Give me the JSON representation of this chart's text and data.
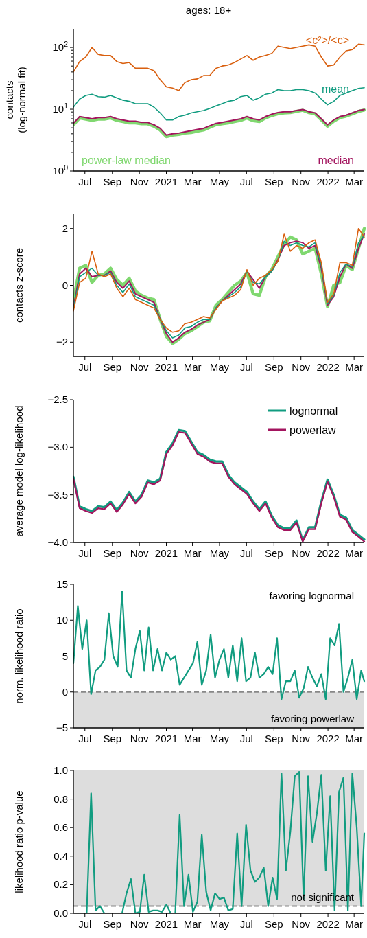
{
  "chart_data": [
    {
      "type": "line",
      "title": "ages: 18+",
      "ylabel": "contacts\n(log-normal fit)",
      "log": "y",
      "xlim": [
        "2020-06-05",
        "2022-03-24"
      ],
      "ylim": [
        1,
        200
      ],
      "xticks": [
        {
          "value": "2020-07-01",
          "label": "Jul"
        },
        {
          "value": "2020-09-01",
          "label": "Sep"
        },
        {
          "value": "2020-11-01",
          "label": "Nov"
        },
        {
          "value": "2021-01-01",
          "label": "2021"
        },
        {
          "value": "2021-03-01",
          "label": "Mar"
        },
        {
          "value": "2021-05-01",
          "label": "May"
        },
        {
          "value": "2021-07-01",
          "label": "Jul"
        },
        {
          "value": "2021-09-01",
          "label": "Sep"
        },
        {
          "value": "2021-11-01",
          "label": "Nov"
        },
        {
          "value": "2022-01-01",
          "label": "2022"
        },
        {
          "value": "2022-03-01",
          "label": "Mar"
        }
      ],
      "yticks": [
        {
          "value": 1,
          "label": "10$^{0}$"
        },
        {
          "value": 2,
          "label": null
        },
        {
          "value": 3,
          "label": null
        },
        {
          "value": 4,
          "label": null
        },
        {
          "value": 5,
          "label": null
        },
        {
          "value": 6,
          "label": null
        },
        {
          "value": 7,
          "label": null
        },
        {
          "value": 8,
          "label": null
        },
        {
          "value": 9,
          "label": null
        },
        {
          "value": 10,
          "label": "10$^{1}$"
        },
        {
          "value": 20,
          "label": null
        },
        {
          "value": 30,
          "label": null
        },
        {
          "value": 40,
          "label": null
        },
        {
          "value": 50,
          "label": null
        },
        {
          "value": 60,
          "label": null
        },
        {
          "value": 70,
          "label": null
        },
        {
          "value": 80,
          "label": null
        },
        {
          "value": 90,
          "label": null
        },
        {
          "value": 100,
          "label": "10$^{2}$"
        }
      ],
      "x": [
        "2020-06-05",
        "2020-06-19",
        "2020-07-03",
        "2020-07-17",
        "2020-07-31",
        "2020-08-14",
        "2020-08-28",
        "2020-09-11",
        "2020-09-25",
        "2020-10-09",
        "2020-10-23",
        "2020-11-06",
        "2020-11-20",
        "2020-12-04",
        "2020-12-18",
        "2021-01-01",
        "2021-01-15",
        "2021-01-29",
        "2021-02-12",
        "2021-02-26",
        "2021-03-12",
        "2021-03-26",
        "2021-04-09",
        "2021-04-23",
        "2021-05-07",
        "2021-05-21",
        "2021-06-04",
        "2021-06-18",
        "2021-07-02",
        "2021-07-16",
        "2021-07-30",
        "2021-08-13",
        "2021-08-27",
        "2021-09-10",
        "2021-09-24",
        "2021-10-08",
        "2021-10-22",
        "2021-11-05",
        "2021-11-19",
        "2021-12-03",
        "2021-12-17",
        "2021-12-31",
        "2022-01-14",
        "2022-01-28",
        "2022-02-11",
        "2022-02-25",
        "2022-03-11",
        "2022-03-24"
      ],
      "series": [
        {
          "name": "power-law median",
          "color": "#80d870",
          "values": [
            5.6,
            7.2,
            6.9,
            6.6,
            6.9,
            6.9,
            7.2,
            6.6,
            6.3,
            6.0,
            6.0,
            5.8,
            5.8,
            5.3,
            4.6,
            3.6,
            3.8,
            3.9,
            4.1,
            4.2,
            4.4,
            4.6,
            5.1,
            5.6,
            5.8,
            6.0,
            6.3,
            6.6,
            7.2,
            6.5,
            6.3,
            7.2,
            7.9,
            8.4,
            8.7,
            8.8,
            9.2,
            9.6,
            8.8,
            8.4,
            6.7,
            5.3,
            6.4,
            7.3,
            7.7,
            8.4,
            9.2,
            9.7
          ]
        },
        {
          "name": "median",
          "color": "#a3145e",
          "values": [
            5.9,
            7.6,
            7.3,
            7.0,
            7.3,
            7.3,
            7.6,
            7.0,
            6.7,
            6.4,
            6.4,
            6.1,
            6.1,
            5.6,
            4.9,
            3.8,
            4.0,
            4.1,
            4.3,
            4.5,
            4.7,
            4.9,
            5.4,
            5.9,
            6.1,
            6.4,
            6.7,
            7.0,
            7.6,
            7.0,
            6.7,
            7.6,
            8.3,
            8.8,
            9.1,
            9.1,
            9.5,
            9.9,
            9.1,
            8.7,
            7.0,
            5.6,
            6.7,
            7.6,
            8.0,
            8.7,
            9.5,
            9.9
          ]
        },
        {
          "name": "mean",
          "color": "#119c80",
          "values": [
            10.8,
            14.6,
            16.7,
            17.5,
            16,
            15.7,
            16.7,
            15.3,
            14,
            13.4,
            12.3,
            12.3,
            12.3,
            10.8,
            8.7,
            6.7,
            6.7,
            7.6,
            8,
            8.7,
            9.1,
            9.5,
            10.3,
            11.3,
            12.3,
            13.4,
            14,
            16,
            16.7,
            14,
            15.3,
            17.5,
            18.3,
            20.8,
            20,
            20,
            20.8,
            20.8,
            20,
            18.3,
            14.6,
            11.8,
            13.4,
            16.7,
            18.3,
            20,
            21.7,
            22.3
          ]
        },
        {
          "name": "<c²>/<c>",
          "color": "#d95f0e",
          "values": [
            40,
            59,
            70,
            100,
            77,
            74,
            74,
            59,
            55,
            57,
            46,
            46,
            46,
            42,
            30,
            23,
            22,
            20,
            27,
            30,
            31,
            35,
            35,
            46,
            50,
            52,
            57,
            65,
            74,
            62,
            70,
            74,
            80,
            105,
            100,
            96,
            100,
            105,
            110,
            105,
            70,
            50,
            52,
            70,
            88,
            92,
            113,
            110
          ]
        }
      ]
    },
    {
      "type": "line",
      "ylabel": "contacts z-score",
      "xlim": [
        "2020-06-05",
        "2022-03-24"
      ],
      "ylim": [
        -2.5,
        2.5
      ],
      "xticks": [
        {
          "value": "2020-07-01",
          "label": "Jul"
        },
        {
          "value": "2020-09-01",
          "label": "Sep"
        },
        {
          "value": "2020-11-01",
          "label": "Nov"
        },
        {
          "value": "2021-01-01",
          "label": "2021"
        },
        {
          "value": "2021-03-01",
          "label": "Mar"
        },
        {
          "value": "2021-05-01",
          "label": "May"
        },
        {
          "value": "2021-07-01",
          "label": "Jul"
        },
        {
          "value": "2021-09-01",
          "label": "Sep"
        },
        {
          "value": "2021-11-01",
          "label": "Nov"
        },
        {
          "value": "2022-01-01",
          "label": "2022"
        },
        {
          "value": "2022-03-01",
          "label": "Mar"
        }
      ],
      "yticks": [
        {
          "value": -2,
          "label": "−2"
        },
        0,
        2
      ],
      "x": [
        "2020-06-05",
        "2020-06-19",
        "2020-07-03",
        "2020-07-17",
        "2020-07-31",
        "2020-08-14",
        "2020-08-28",
        "2020-09-11",
        "2020-09-25",
        "2020-10-09",
        "2020-10-23",
        "2020-11-06",
        "2020-11-20",
        "2020-12-04",
        "2020-12-18",
        "2021-01-01",
        "2021-01-15",
        "2021-01-29",
        "2021-02-12",
        "2021-02-26",
        "2021-03-12",
        "2021-03-26",
        "2021-04-09",
        "2021-04-23",
        "2021-05-07",
        "2021-05-21",
        "2021-06-04",
        "2021-06-18",
        "2021-07-02",
        "2021-07-16",
        "2021-07-30",
        "2021-08-13",
        "2021-08-27",
        "2021-09-10",
        "2021-09-24",
        "2021-10-08",
        "2021-10-22",
        "2021-11-05",
        "2021-11-19",
        "2021-12-03",
        "2021-12-17",
        "2021-12-31",
        "2022-01-14",
        "2022-01-28",
        "2022-02-11",
        "2022-02-25",
        "2022-03-11",
        "2022-03-24"
      ],
      "series": [
        {
          "color": "#80d870",
          "values": [
            -0.55,
            0.6,
            0.7,
            0.1,
            0.35,
            0.4,
            0.6,
            0.2,
            0.0,
            0.25,
            -0.2,
            -0.35,
            -0.45,
            -0.5,
            -1.2,
            -1.8,
            -2.05,
            -1.9,
            -1.7,
            -1.6,
            -1.45,
            -1.3,
            -1.25,
            -0.7,
            -0.5,
            -0.25,
            0.0,
            0.15,
            0.45,
            -0.3,
            -0.35,
            0.3,
            0.55,
            1.0,
            1.45,
            1.7,
            1.6,
            1.1,
            1.2,
            1.3,
            0.4,
            -0.75,
            0.0,
            0.1,
            0.7,
            0.55,
            1.3,
            2.0
          ]
        },
        {
          "color": "#a3145e",
          "values": [
            -0.8,
            0.4,
            0.6,
            0.3,
            0.35,
            0.35,
            0.5,
            0.1,
            -0.1,
            0.15,
            -0.3,
            -0.4,
            -0.5,
            -0.6,
            -1.2,
            -1.7,
            -2.0,
            -1.85,
            -1.65,
            -1.55,
            -1.4,
            -1.3,
            -1.2,
            -0.8,
            -0.55,
            -0.35,
            -0.15,
            0.05,
            0.5,
            0.2,
            -0.1,
            0.3,
            0.5,
            0.9,
            1.4,
            1.5,
            1.55,
            1.5,
            1.3,
            1.4,
            0.6,
            -0.7,
            -0.4,
            0.3,
            0.75,
            0.6,
            1.3,
            1.8
          ]
        },
        {
          "color": "#119c80",
          "values": [
            -0.85,
            0.3,
            0.45,
            0.6,
            0.35,
            0.35,
            0.45,
            0.0,
            -0.25,
            0.05,
            -0.4,
            -0.5,
            -0.6,
            -0.7,
            -1.2,
            -1.6,
            -1.85,
            -1.75,
            -1.5,
            -1.45,
            -1.3,
            -1.2,
            -1.2,
            -0.8,
            -0.55,
            -0.4,
            -0.25,
            -0.05,
            0.5,
            0.1,
            0.05,
            0.3,
            0.5,
            0.85,
            1.55,
            1.4,
            1.5,
            1.4,
            1.35,
            1.5,
            0.7,
            -0.65,
            -0.35,
            0.45,
            0.75,
            0.65,
            1.5,
            1.75
          ]
        },
        {
          "color": "#d95f0e",
          "values": [
            -0.9,
            0.1,
            0.25,
            1.2,
            0.4,
            0.3,
            0.4,
            -0.1,
            -0.4,
            -0.1,
            -0.5,
            -0.6,
            -0.7,
            -0.8,
            -1.2,
            -1.5,
            -1.65,
            -1.6,
            -1.35,
            -1.3,
            -1.2,
            -1.1,
            -1.15,
            -0.85,
            -0.55,
            -0.45,
            -0.35,
            -0.15,
            0.55,
            0.0,
            0.25,
            0.35,
            0.55,
            0.85,
            1.8,
            1.2,
            1.4,
            1.3,
            1.5,
            1.6,
            0.8,
            -0.6,
            -0.3,
            0.8,
            0.8,
            0.7,
            2.0,
            1.7
          ]
        }
      ]
    },
    {
      "type": "line",
      "ylabel": "average model log-likelihood",
      "legend": "top right",
      "xlim": [
        "2020-06-05",
        "2022-03-24"
      ],
      "ylim": [
        -4,
        -2.5
      ],
      "xticks": [
        {
          "value": "2020-07-01",
          "label": "Jul"
        },
        {
          "value": "2020-09-01",
          "label": "Sep"
        },
        {
          "value": "2020-11-01",
          "label": "Nov"
        },
        {
          "value": "2021-01-01",
          "label": "2021"
        },
        {
          "value": "2021-03-01",
          "label": "Mar"
        },
        {
          "value": "2021-05-01",
          "label": "May"
        },
        {
          "value": "2021-07-01",
          "label": "Jul"
        },
        {
          "value": "2021-09-01",
          "label": "Sep"
        },
        {
          "value": "2021-11-01",
          "label": "Nov"
        },
        {
          "value": "2022-01-01",
          "label": "2022"
        },
        {
          "value": "2022-03-01",
          "label": "Mar"
        }
      ],
      "yticks": [
        {
          "value": -4,
          "label": "−4.0"
        },
        {
          "value": -3.5,
          "label": "−3.5"
        },
        {
          "value": -3,
          "label": "−3.0"
        },
        {
          "value": -2.5,
          "label": "−2.5"
        }
      ],
      "x": [
        "2020-06-05",
        "2020-06-19",
        "2020-07-03",
        "2020-07-17",
        "2020-07-31",
        "2020-08-14",
        "2020-08-28",
        "2020-09-11",
        "2020-09-25",
        "2020-10-09",
        "2020-10-23",
        "2020-11-06",
        "2020-11-20",
        "2020-12-04",
        "2020-12-18",
        "2021-01-01",
        "2021-01-15",
        "2021-01-29",
        "2021-02-12",
        "2021-02-26",
        "2021-03-12",
        "2021-03-26",
        "2021-04-09",
        "2021-04-23",
        "2021-05-07",
        "2021-05-21",
        "2021-06-04",
        "2021-06-18",
        "2021-07-02",
        "2021-07-16",
        "2021-07-30",
        "2021-08-13",
        "2021-08-27",
        "2021-09-10",
        "2021-09-24",
        "2021-10-08",
        "2021-10-22",
        "2021-11-05",
        "2021-11-19",
        "2021-12-03",
        "2021-12-17",
        "2021-12-31",
        "2022-01-14",
        "2022-01-28",
        "2022-02-11",
        "2022-02-25",
        "2022-03-11",
        "2022-03-24"
      ],
      "series": [
        {
          "name": "lognormal",
          "color": "#119c80",
          "values": [
            -3.31,
            -3.62,
            -3.65,
            -3.67,
            -3.62,
            -3.63,
            -3.57,
            -3.66,
            -3.58,
            -3.47,
            -3.57,
            -3.5,
            -3.35,
            -3.37,
            -3.33,
            -3.05,
            -2.96,
            -2.82,
            -2.83,
            -2.94,
            -3.05,
            -3.08,
            -3.13,
            -3.15,
            -3.15,
            -3.29,
            -3.37,
            -3.42,
            -3.47,
            -3.57,
            -3.65,
            -3.57,
            -3.72,
            -3.82,
            -3.85,
            -3.85,
            -3.77,
            -3.98,
            -3.84,
            -3.84,
            -3.57,
            -3.34,
            -3.5,
            -3.71,
            -3.74,
            -3.87,
            -3.92,
            -3.97
          ]
        },
        {
          "name": "powerlaw",
          "color": "#a3145e",
          "values": [
            -3.33,
            -3.64,
            -3.67,
            -3.69,
            -3.64,
            -3.65,
            -3.59,
            -3.68,
            -3.6,
            -3.49,
            -3.59,
            -3.52,
            -3.37,
            -3.39,
            -3.35,
            -3.07,
            -2.98,
            -2.84,
            -2.85,
            -2.96,
            -3.07,
            -3.1,
            -3.15,
            -3.17,
            -3.17,
            -3.31,
            -3.39,
            -3.44,
            -3.49,
            -3.59,
            -3.67,
            -3.59,
            -3.74,
            -3.84,
            -3.87,
            -3.87,
            -3.79,
            -3.99,
            -3.86,
            -3.86,
            -3.59,
            -3.36,
            -3.52,
            -3.73,
            -3.76,
            -3.89,
            -3.94,
            -3.99
          ]
        }
      ]
    },
    {
      "type": "line",
      "ylabel": "norm. likelihood ratio",
      "xlim": [
        "2020-06-05",
        "2022-03-24"
      ],
      "ylim": [
        -5,
        15
      ],
      "xticks": [
        {
          "value": "2020-07-01",
          "label": "Jul"
        },
        {
          "value": "2020-09-01",
          "label": "Sep"
        },
        {
          "value": "2020-11-01",
          "label": "Nov"
        },
        {
          "value": "2021-01-01",
          "label": "2021"
        },
        {
          "value": "2021-03-01",
          "label": "Mar"
        },
        {
          "value": "2021-05-01",
          "label": "May"
        },
        {
          "value": "2021-07-01",
          "label": "Jul"
        },
        {
          "value": "2021-09-01",
          "label": "Sep"
        },
        {
          "value": "2021-11-01",
          "label": "Nov"
        },
        {
          "value": "2022-01-01",
          "label": "2022"
        },
        {
          "value": "2022-03-01",
          "label": "Mar"
        }
      ],
      "yticks": [
        {
          "value": -5,
          "label": "−5"
        },
        0,
        5,
        10,
        15
      ],
      "annotations": [
        "favoring lognormal"
      ],
      "bands": [
        {
          "axis": "y",
          "from": -5,
          "to": 0,
          "label": "favoring powerlaw",
          "color": "#dddddd"
        }
      ],
      "ref_lines": [
        {
          "axis": "y",
          "value": 0,
          "color": "#888888",
          "line_style": "dashed"
        }
      ],
      "x": [
        "2020-06-05",
        "2020-06-15",
        "2020-06-25",
        "2020-07-05",
        "2020-07-15",
        "2020-07-25",
        "2020-08-04",
        "2020-08-14",
        "2020-08-24",
        "2020-09-03",
        "2020-09-13",
        "2020-09-23",
        "2020-10-03",
        "2020-10-13",
        "2020-10-23",
        "2020-11-02",
        "2020-11-12",
        "2020-11-22",
        "2020-12-02",
        "2020-12-12",
        "2020-12-22",
        "2021-01-01",
        "2021-01-11",
        "2021-01-21",
        "2021-01-31",
        "2021-02-10",
        "2021-02-20",
        "2021-03-02",
        "2021-03-12",
        "2021-03-22",
        "2021-04-01",
        "2021-04-11",
        "2021-04-21",
        "2021-05-01",
        "2021-05-11",
        "2021-05-21",
        "2021-05-31",
        "2021-06-10",
        "2021-06-20",
        "2021-06-30",
        "2021-07-10",
        "2021-07-20",
        "2021-07-30",
        "2021-08-09",
        "2021-08-19",
        "2021-08-29",
        "2021-09-08",
        "2021-09-18",
        "2021-09-28",
        "2021-10-08",
        "2021-10-18",
        "2021-10-28",
        "2021-11-07",
        "2021-11-17",
        "2021-11-27",
        "2021-12-07",
        "2021-12-17",
        "2021-12-27",
        "2022-01-06",
        "2022-01-16",
        "2022-01-26",
        "2022-02-05",
        "2022-02-15",
        "2022-02-25",
        "2022-03-07",
        "2022-03-17",
        "2022-03-24"
      ],
      "series": [
        {
          "color": "#119c80",
          "values": [
            4,
            12,
            6,
            10,
            -0.3,
            3,
            3.5,
            4.5,
            11,
            5,
            3.5,
            14,
            3,
            2,
            6,
            8.5,
            3,
            9,
            3,
            6,
            3,
            5.5,
            4.5,
            5,
            1,
            2,
            3,
            4,
            7,
            1,
            3,
            8,
            2,
            4.5,
            6,
            2,
            6.5,
            1.5,
            7.5,
            1.5,
            2,
            5.5,
            2,
            2.5,
            3.5,
            2.5,
            7.5,
            -1,
            1.5,
            1.5,
            3,
            -0.8,
            0.5,
            3.5,
            2,
            0.8,
            2.5,
            -1,
            7.5,
            6.5,
            9.5,
            0,
            2,
            4.5,
            -1,
            3,
            1.5
          ]
        }
      ]
    },
    {
      "type": "line",
      "ylabel": "likelihood ratio p-value",
      "xlim": [
        "2020-06-05",
        "2022-03-24"
      ],
      "ylim": [
        0,
        1
      ],
      "xticks": [
        {
          "value": "2020-07-01",
          "label": "Jul"
        },
        {
          "value": "2020-09-01",
          "label": "Sep"
        },
        {
          "value": "2020-11-01",
          "label": "Nov"
        },
        {
          "value": "2021-01-01",
          "label": "2021"
        },
        {
          "value": "2021-03-01",
          "label": "Mar"
        },
        {
          "value": "2021-05-01",
          "label": "May"
        },
        {
          "value": "2021-07-01",
          "label": "Jul"
        },
        {
          "value": "2021-09-01",
          "label": "Sep"
        },
        {
          "value": "2021-11-01",
          "label": "Nov"
        },
        {
          "value": "2022-01-01",
          "label": "2022"
        },
        {
          "value": "2022-03-01",
          "label": "Mar"
        }
      ],
      "yticks": [
        {
          "value": 0,
          "label": "0.0"
        },
        0.2,
        0.4,
        0.6,
        0.8,
        {
          "value": 1,
          "label": "1.0"
        }
      ],
      "bands": [
        {
          "axis": "y",
          "from": 0.05,
          "to": 1,
          "label": "not significant",
          "color": "#dddddd"
        }
      ],
      "ref_lines": [
        {
          "axis": "y",
          "value": 0.05,
          "color": "#888888",
          "line_style": "dashed"
        }
      ],
      "x": [
        "2020-06-05",
        "2020-06-15",
        "2020-06-25",
        "2020-07-05",
        "2020-07-15",
        "2020-07-25",
        "2020-08-04",
        "2020-08-14",
        "2020-08-24",
        "2020-09-03",
        "2020-09-13",
        "2020-09-23",
        "2020-10-03",
        "2020-10-13",
        "2020-10-23",
        "2020-11-02",
        "2020-11-12",
        "2020-11-22",
        "2020-12-02",
        "2020-12-12",
        "2020-12-22",
        "2021-01-01",
        "2021-01-11",
        "2021-01-21",
        "2021-01-31",
        "2021-02-10",
        "2021-02-20",
        "2021-03-02",
        "2021-03-12",
        "2021-03-22",
        "2021-04-01",
        "2021-04-11",
        "2021-04-21",
        "2021-05-01",
        "2021-05-11",
        "2021-05-21",
        "2021-05-31",
        "2021-06-10",
        "2021-06-20",
        "2021-06-30",
        "2021-07-10",
        "2021-07-20",
        "2021-07-30",
        "2021-08-09",
        "2021-08-19",
        "2021-08-29",
        "2021-09-08",
        "2021-09-18",
        "2021-09-28",
        "2021-10-08",
        "2021-10-18",
        "2021-10-28",
        "2021-11-07",
        "2021-11-17",
        "2021-11-27",
        "2021-12-07",
        "2021-12-17",
        "2021-12-27",
        "2022-01-06",
        "2022-01-16",
        "2022-01-26",
        "2022-02-05",
        "2022-02-15",
        "2022-02-25",
        "2022-03-07",
        "2022-03-17",
        "2022-03-24"
      ],
      "series": [
        {
          "color": "#119c80",
          "values": [
            0,
            0,
            0,
            0,
            0.84,
            0.02,
            0.05,
            0,
            0,
            0,
            0,
            0,
            0.14,
            0.24,
            0,
            0.01,
            0.27,
            0.01,
            0.02,
            0.02,
            0.01,
            0.06,
            0,
            0,
            0.69,
            0.05,
            0.27,
            0.01,
            0.08,
            0.55,
            0.15,
            0.02,
            0.14,
            0.1,
            0.11,
            0.02,
            0.03,
            0.56,
            0.05,
            0.62,
            0.3,
            0.22,
            0.25,
            0.32,
            0.05,
            0.25,
            0.1,
            0.98,
            0.3,
            0.57,
            0.96,
            0.99,
            0.1,
            0.96,
            0.5,
            0.7,
            0.97,
            0.3,
            0.82,
            0.02,
            0.85,
            0.95,
            0.02,
            0.98,
            0.6,
            0.05,
            0.56
          ]
        }
      ]
    }
  ]
}
